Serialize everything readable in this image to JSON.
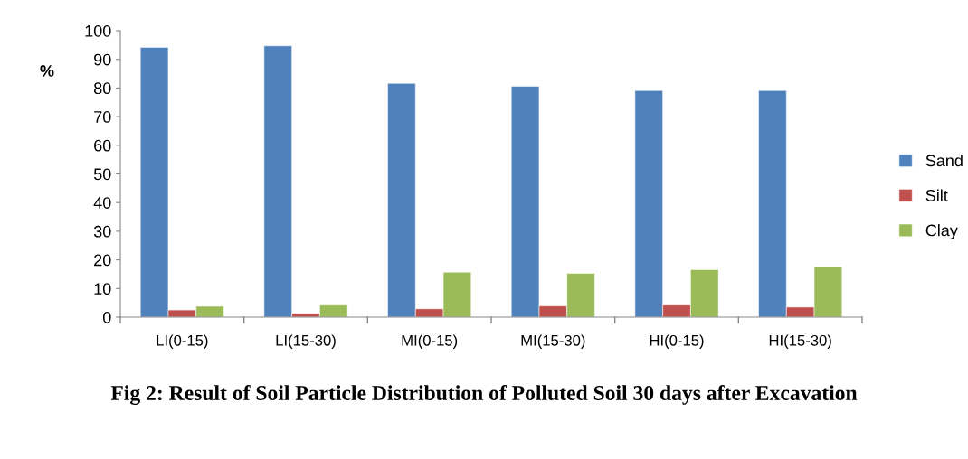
{
  "chart_data": {
    "type": "bar",
    "title": "Fig 2: Result of Soil Particle Distribution of Polluted Soil 30 days after Excavation",
    "ylabel": "%",
    "categories": [
      "LI(0-15)",
      "LI(15-30)",
      "MI(0-15)",
      "MI(15-30)",
      "HI(0-15)",
      "HI(15-30)"
    ],
    "series": [
      {
        "name": "Sand",
        "color": "#4f81bd",
        "values": [
          94.2,
          94.7,
          81.6,
          80.6,
          79.1,
          79.1
        ]
      },
      {
        "name": "Silt",
        "color": "#c0504d",
        "values": [
          2.5,
          1.3,
          2.9,
          3.9,
          4.2,
          3.5
        ]
      },
      {
        "name": "Clay",
        "color": "#9bbb59",
        "values": [
          3.8,
          4.2,
          15.7,
          15.3,
          16.6,
          17.5
        ]
      }
    ],
    "ylim": [
      0,
      100
    ],
    "yticks": [
      0,
      10,
      20,
      30,
      40,
      50,
      60,
      70,
      80,
      90,
      100
    ],
    "grid": false,
    "legend": "right"
  }
}
